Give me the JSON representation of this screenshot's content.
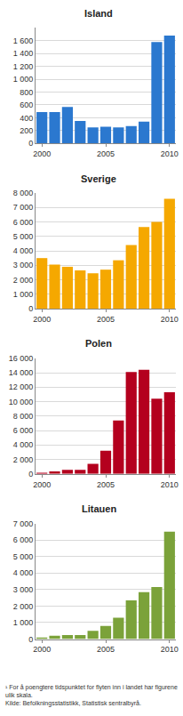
{
  "chart_data": [
    {
      "type": "bar",
      "title": "Island",
      "color": "#2b78cf",
      "x": [
        2000,
        2001,
        2002,
        2003,
        2004,
        2005,
        2006,
        2007,
        2008,
        2009,
        2010
      ],
      "values": [
        490,
        490,
        570,
        350,
        250,
        260,
        250,
        270,
        340,
        1580,
        1680
      ],
      "xlim": [
        1999.5,
        2010.5
      ],
      "xticks": [
        2000,
        2005,
        2010
      ],
      "ylim": [
        0,
        1800
      ],
      "yticks": [
        0,
        200,
        400,
        600,
        800,
        {
          "value": 1000,
          "label": "1 000"
        },
        {
          "value": 1200,
          "label": "1 200"
        },
        {
          "value": 1400,
          "label": "1 400"
        },
        {
          "value": 1600,
          "label": "1 600"
        }
      ],
      "grid": true
    },
    {
      "type": "bar",
      "title": "Sverige",
      "color": "#f5a800",
      "x": [
        2000,
        2001,
        2002,
        2003,
        2004,
        2005,
        2006,
        2007,
        2008,
        2009,
        2010
      ],
      "values": [
        3500,
        3050,
        2900,
        2650,
        2450,
        2700,
        3350,
        4400,
        5650,
        6000,
        7600
      ],
      "xlim": [
        1999.5,
        2010.5
      ],
      "xticks": [
        2000,
        2005,
        2010
      ],
      "ylim": [
        0,
        8000
      ],
      "yticks": [
        0,
        {
          "value": 1000,
          "label": "1 000"
        },
        {
          "value": 2000,
          "label": "2 000"
        },
        {
          "value": 3000,
          "label": "3 000"
        },
        {
          "value": 4000,
          "label": "4 000"
        },
        {
          "value": 5000,
          "label": "5 000"
        },
        {
          "value": 6000,
          "label": "6 000"
        },
        {
          "value": 7000,
          "label": "7 000"
        },
        {
          "value": 8000,
          "label": "8 000"
        }
      ],
      "grid": true
    },
    {
      "type": "bar",
      "title": "Polen",
      "color": "#b4001e",
      "x": [
        2000,
        2001,
        2002,
        2003,
        2004,
        2005,
        2006,
        2007,
        2008,
        2009,
        2010
      ],
      "values": [
        150,
        350,
        550,
        550,
        1400,
        3200,
        7400,
        14100,
        14400,
        10400,
        11300
      ],
      "xlim": [
        1999.5,
        2010.5
      ],
      "xticks": [
        2000,
        2005,
        2010
      ],
      "ylim": [
        0,
        16000
      ],
      "yticks": [
        0,
        {
          "value": 2000,
          "label": "2 000"
        },
        {
          "value": 4000,
          "label": "4 000"
        },
        {
          "value": 6000,
          "label": "6 000"
        },
        {
          "value": 8000,
          "label": "8 000"
        },
        {
          "value": 10000,
          "label": "10 000"
        },
        {
          "value": 12000,
          "label": "12 000"
        },
        {
          "value": 14000,
          "label": "14 000"
        },
        {
          "value": 16000,
          "label": "16 000"
        }
      ],
      "grid": true
    },
    {
      "type": "bar",
      "title": "Litauen",
      "color": "#7ba23a",
      "x": [
        2000,
        2001,
        2002,
        2003,
        2004,
        2005,
        2006,
        2007,
        2008,
        2009,
        2010
      ],
      "values": [
        100,
        200,
        250,
        250,
        500,
        800,
        1300,
        2350,
        2850,
        3150,
        6500
      ],
      "xlim": [
        1999.5,
        2010.5
      ],
      "xticks": [
        2000,
        2005,
        2010
      ],
      "ylim": [
        0,
        7000
      ],
      "yticks": [
        0,
        {
          "value": 1000,
          "label": "1 000"
        },
        {
          "value": 2000,
          "label": "2 000"
        },
        {
          "value": 3000,
          "label": "3 000"
        },
        {
          "value": 4000,
          "label": "4 000"
        },
        {
          "value": 5000,
          "label": "5 000"
        },
        {
          "value": 6000,
          "label": "6 000"
        },
        {
          "value": 7000,
          "label": "7 000"
        }
      ],
      "grid": true
    }
  ],
  "footnote": "¹ For å poengtere tidspunktet for flyten inn i landet har figurene ulik skala.",
  "source": "Kilde: Befolkningsstatistikk, Statistisk sentralbyrå."
}
